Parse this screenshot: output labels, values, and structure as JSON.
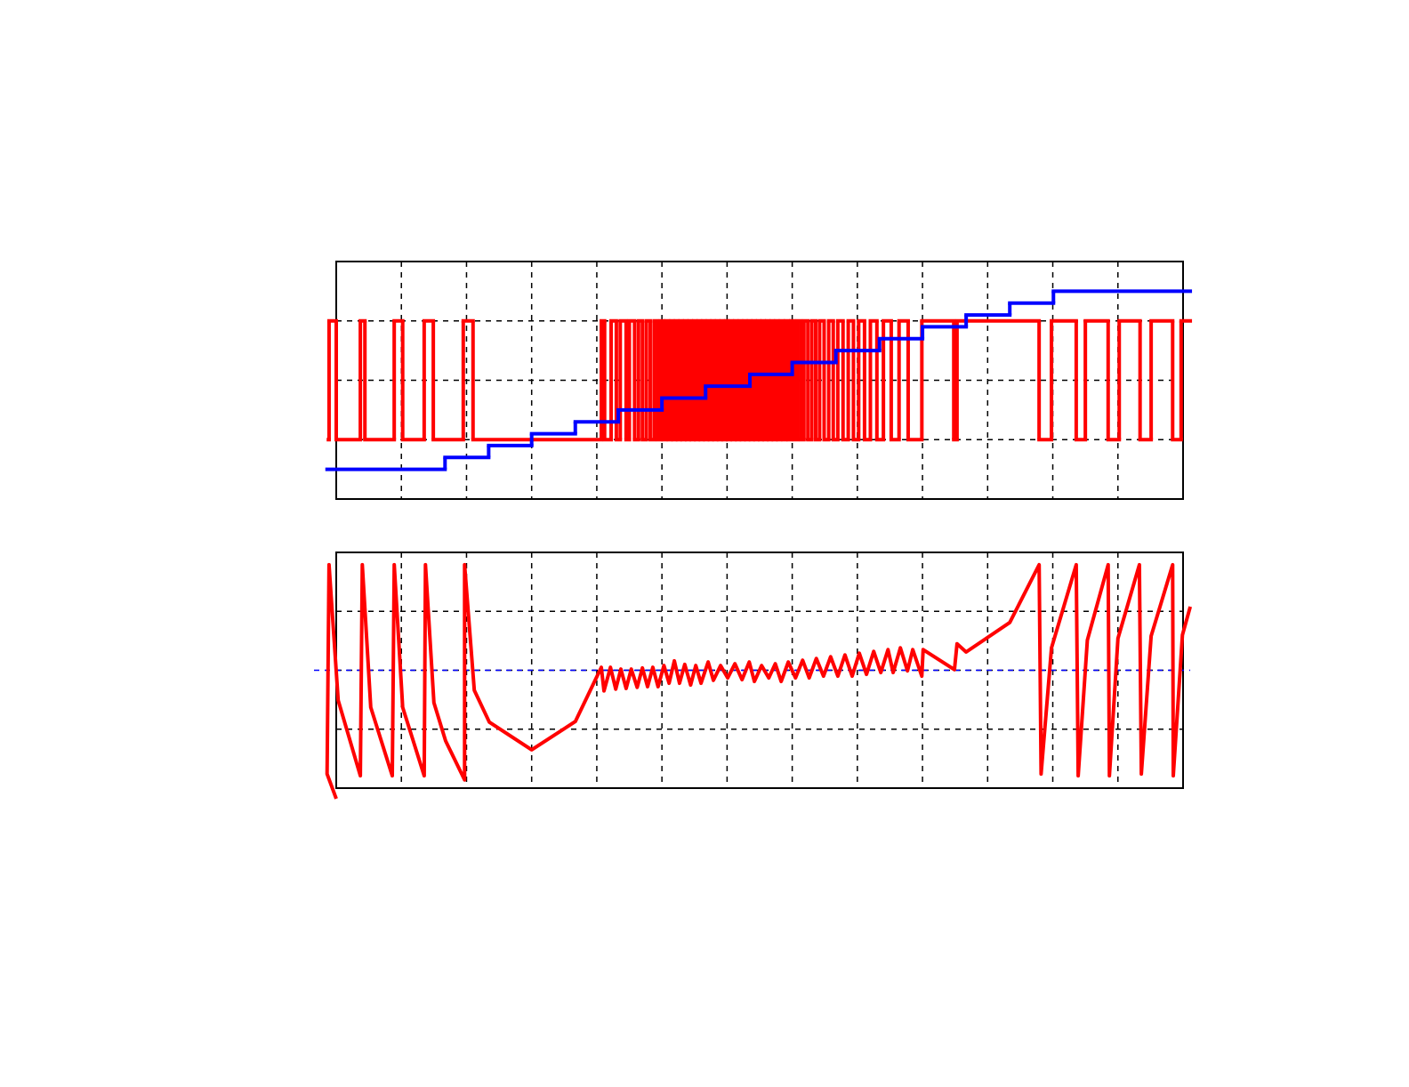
{
  "chart_data": [
    {
      "type": "line",
      "grid": true,
      "xlim": [
        0,
        13
      ],
      "xticks": [
        0,
        1,
        2,
        3,
        4,
        5,
        6,
        7,
        8,
        9,
        10,
        11,
        12,
        13
      ],
      "ylim": [
        0,
        4
      ],
      "yticks": [
        0,
        1,
        2,
        3,
        4
      ],
      "series": [
        {
          "color": "#ff0000",
          "step": "post",
          "x": [
            -0.12,
            -0.11,
            0,
            0.37,
            0.44,
            0.89,
            1.02,
            1.35,
            1.49,
            1.95,
            2.1,
            4.07,
            4.12,
            4.22,
            4.3,
            4.36,
            4.45,
            4.5,
            4.58,
            4.64,
            4.7,
            4.76,
            4.82,
            4.88,
            4.93,
            4.98,
            5.02,
            5.06,
            5.1,
            5.14,
            5.17,
            5.21,
            5.24,
            5.28,
            5.31,
            5.35,
            5.38,
            5.42,
            5.45,
            5.49,
            5.52,
            5.56,
            5.59,
            5.63,
            5.66,
            5.7,
            5.73,
            5.77,
            5.8,
            5.84,
            5.87,
            5.91,
            5.94,
            5.98,
            6.01,
            6.05,
            6.08,
            6.12,
            6.15,
            6.19,
            6.22,
            6.26,
            6.29,
            6.33,
            6.36,
            6.4,
            6.43,
            6.47,
            6.5,
            6.54,
            6.57,
            6.61,
            6.64,
            6.68,
            6.71,
            6.75,
            6.78,
            6.82,
            6.86,
            6.9,
            6.94,
            6.98,
            7.03,
            7.08,
            7.13,
            7.18,
            7.24,
            7.3,
            7.36,
            7.42,
            7.49,
            7.56,
            7.63,
            7.7,
            7.78,
            7.86,
            7.94,
            8.02,
            8.11,
            8.2,
            8.3,
            8.4,
            8.52,
            8.64,
            8.78,
            8.99,
            9.48,
            9.53,
            10.79,
            10.98,
            11.36,
            11.5,
            11.85,
            12.02,
            12.34,
            12.51,
            12.84,
            12.97,
            13.11
          ],
          "values": [
            1,
            3,
            1,
            3,
            1,
            3,
            1,
            3,
            1,
            3,
            1,
            3,
            1,
            3,
            1,
            3,
            1,
            3,
            1,
            3,
            1,
            3,
            1,
            3,
            1,
            3,
            1,
            3,
            1,
            3,
            1,
            3,
            1,
            3,
            1,
            3,
            1,
            3,
            1,
            3,
            1,
            3,
            1,
            3,
            1,
            3,
            1,
            3,
            1,
            3,
            1,
            3,
            1,
            3,
            1,
            3,
            1,
            3,
            1,
            3,
            1,
            3,
            1,
            3,
            1,
            3,
            1,
            3,
            1,
            3,
            1,
            3,
            1,
            3,
            1,
            3,
            1,
            3,
            1,
            3,
            1,
            3,
            1,
            3,
            1,
            3,
            1,
            3,
            1,
            3,
            1,
            3,
            1,
            3,
            1,
            3,
            1,
            3,
            1,
            3,
            1,
            3,
            1,
            3,
            1,
            3,
            1,
            3,
            1,
            3,
            1,
            3,
            1,
            3,
            1,
            3,
            1,
            3,
            3
          ]
        },
        {
          "color": "#0000ff",
          "step": "post",
          "x": [
            -0.14,
            1.67,
            2.34,
            3.0,
            3.67,
            4.33,
            5.0,
            5.67,
            6.35,
            7.0,
            7.67,
            8.34,
            9.0,
            9.67,
            10.34,
            11.01,
            13.11
          ],
          "values": [
            0.5,
            0.7,
            0.9,
            1.1,
            1.3,
            1.5,
            1.7,
            1.9,
            2.1,
            2.3,
            2.5,
            2.7,
            2.9,
            3.1,
            3.3,
            3.5,
            3.5
          ]
        }
      ]
    },
    {
      "type": "line",
      "grid": true,
      "xlim": [
        0,
        13
      ],
      "xticks": [
        0,
        1,
        2,
        3,
        4,
        5,
        6,
        7,
        8,
        9,
        10,
        11,
        12,
        13
      ],
      "ylim": [
        0,
        4
      ],
      "yticks": [
        0,
        1,
        2,
        3,
        4
      ],
      "reference_line": {
        "value": 2,
        "color": "#0000ff"
      },
      "series": [
        {
          "color": "#ff0000",
          "x": [
            0,
            -0.14,
            -0.11,
            0.03,
            0.37,
            0.4,
            0.53,
            0.86,
            0.89,
            1.02,
            1.35,
            1.37,
            1.5,
            1.68,
            1.97,
            1.97,
            2.12,
            2.35,
            3.0,
            3.67,
            4.07,
            4.11,
            4.21,
            4.29,
            4.37,
            4.45,
            4.53,
            4.62,
            4.7,
            4.78,
            4.86,
            4.94,
            5.03,
            5.11,
            5.19,
            5.27,
            5.35,
            5.44,
            5.52,
            5.6,
            5.71,
            5.79,
            5.9,
            6.01,
            6.12,
            6.23,
            6.34,
            6.42,
            6.53,
            6.64,
            6.74,
            6.83,
            6.94,
            7.05,
            7.16,
            7.26,
            7.37,
            7.48,
            7.59,
            7.7,
            7.81,
            7.92,
            8.03,
            8.14,
            8.25,
            8.36,
            8.47,
            8.55,
            8.66,
            8.77,
            8.85,
            8.99,
            9.01,
            9.49,
            9.53,
            9.67,
            10.34,
            10.79,
            10.82,
            10.98,
            11.36,
            11.39,
            11.53,
            11.85,
            11.87,
            12.0,
            12.33,
            12.36,
            12.51,
            12.84,
            12.85,
            12.99,
            13.11
          ],
          "values": [
            -0.18,
            0.24,
            3.79,
            1.49,
            0.21,
            3.79,
            1.37,
            0.21,
            3.79,
            1.37,
            0.21,
            3.79,
            1.45,
            0.8,
            0.14,
            3.79,
            1.66,
            1.12,
            0.65,
            1.13,
            2.05,
            1.65,
            2.05,
            1.68,
            2.02,
            1.69,
            2.02,
            1.71,
            2.04,
            1.72,
            2.05,
            1.72,
            2.08,
            1.78,
            2.16,
            1.78,
            2.1,
            1.75,
            2.08,
            1.78,
            2.14,
            1.83,
            2.08,
            1.87,
            2.11,
            1.84,
            2.14,
            1.81,
            2.08,
            1.87,
            2.11,
            1.81,
            2.14,
            1.87,
            2.17,
            1.87,
            2.2,
            1.9,
            2.23,
            1.9,
            2.26,
            1.9,
            2.29,
            1.93,
            2.32,
            1.96,
            2.35,
            1.96,
            2.38,
            1.99,
            2.35,
            1.9,
            2.35,
            2.01,
            2.45,
            2.31,
            2.81,
            3.79,
            0.24,
            2.38,
            3.79,
            0.21,
            2.51,
            3.79,
            0.21,
            2.54,
            3.79,
            0.24,
            2.58,
            3.79,
            0.21,
            2.6,
            3.08
          ]
        }
      ]
    }
  ]
}
